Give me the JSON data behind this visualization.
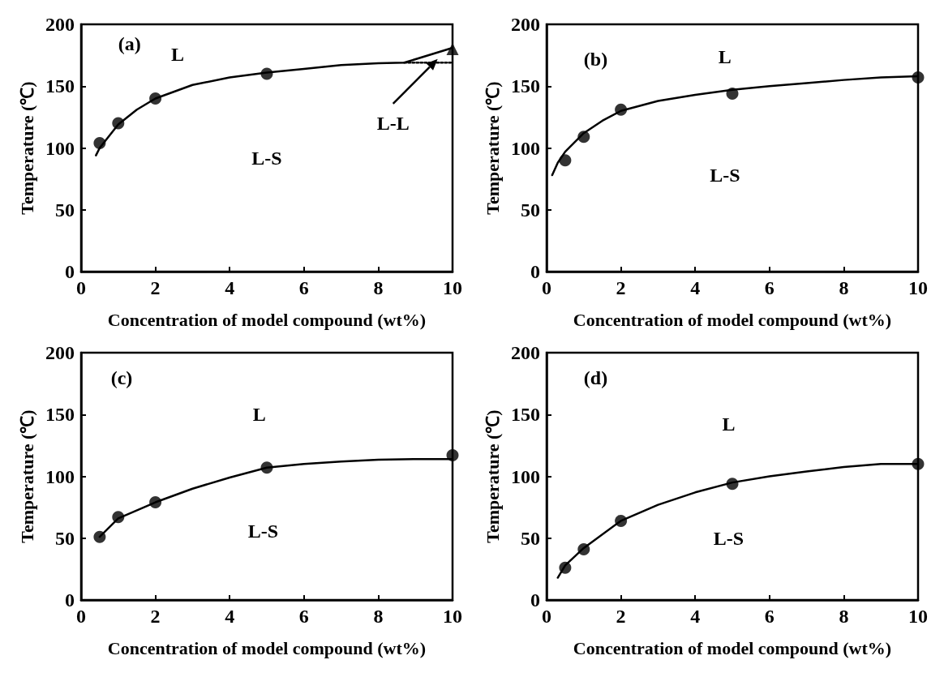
{
  "chart_data": [
    {
      "type": "scatter",
      "xlabel": "Concentration of model compound (wt%)",
      "ylabel": "Temperature (℃)",
      "xlim": [
        0,
        10
      ],
      "xticks": [
        0,
        2,
        4,
        6,
        8,
        10
      ],
      "ylim": [
        0,
        200
      ],
      "yticks": [
        0,
        50,
        100,
        150,
        200
      ],
      "annotations": [
        "(a)",
        "L",
        "L-S",
        "L-L"
      ],
      "series": [
        {
          "marker": "circle",
          "color": "#000000",
          "x": [
            0.5,
            1,
            2,
            5
          ],
          "values": [
            104,
            120,
            140,
            160
          ]
        },
        {
          "marker": "triangle",
          "color": "#000000",
          "x": [
            10
          ],
          "values": [
            180
          ]
        },
        {
          "type": "line",
          "marker": "none",
          "line_style": "solid",
          "color": "#000000",
          "x": [
            0.4,
            0.5,
            1,
            1.5,
            2,
            3,
            4,
            5,
            6,
            7,
            8,
            8.7,
            10
          ],
          "values": [
            94,
            100,
            119,
            131,
            140,
            151,
            157,
            161,
            164,
            167,
            168.5,
            169,
            181
          ]
        },
        {
          "type": "line",
          "marker": "none",
          "line_style": "dotted",
          "color": "#000000",
          "x": [
            8.7,
            10
          ],
          "values": [
            169,
            169
          ]
        }
      ]
    },
    {
      "type": "scatter",
      "xlabel": "Concentration of model compound (wt%)",
      "ylabel": "Temperature (℃)",
      "xlim": [
        0,
        10
      ],
      "xticks": [
        0,
        2,
        4,
        6,
        8,
        10
      ],
      "ylim": [
        0,
        200
      ],
      "yticks": [
        0,
        50,
        100,
        150,
        200
      ],
      "annotations": [
        "(b)",
        "L",
        "L-S"
      ],
      "series": [
        {
          "marker": "circle",
          "color": "#000000",
          "x": [
            0.5,
            1,
            2,
            5,
            10
          ],
          "values": [
            90,
            109,
            131,
            144,
            157
          ]
        },
        {
          "type": "line",
          "marker": "none",
          "line_style": "solid",
          "color": "#000000",
          "x": [
            0.15,
            0.3,
            0.5,
            1,
            1.5,
            2,
            3,
            4,
            5,
            6,
            7,
            8,
            9,
            10
          ],
          "values": [
            78,
            88,
            97,
            112,
            122,
            130,
            138,
            143,
            147,
            150,
            152.5,
            155,
            157,
            158
          ]
        }
      ]
    },
    {
      "type": "scatter",
      "xlabel": "Concentration of model compound (wt%)",
      "ylabel": "Temperature (℃)",
      "xlim": [
        0,
        10
      ],
      "xticks": [
        0,
        2,
        4,
        6,
        8,
        10
      ],
      "ylim": [
        0,
        200
      ],
      "yticks": [
        0,
        50,
        100,
        150,
        200
      ],
      "annotations": [
        "(c)",
        "L",
        "L-S"
      ],
      "series": [
        {
          "marker": "circle",
          "color": "#000000",
          "x": [
            0.5,
            1,
            2,
            5,
            10
          ],
          "values": [
            51,
            67,
            79,
            107,
            117
          ]
        },
        {
          "type": "line",
          "marker": "none",
          "line_style": "solid",
          "color": "#000000",
          "x": [
            0.5,
            1,
            2,
            3,
            4,
            5,
            6,
            7,
            8,
            9,
            10
          ],
          "values": [
            51,
            66,
            79,
            90,
            99,
            107,
            110,
            112,
            113.5,
            114,
            114
          ]
        }
      ]
    },
    {
      "type": "scatter",
      "xlabel": "Concentration of model compound (wt%)",
      "ylabel": "Temperature (℃)",
      "xlim": [
        0,
        10
      ],
      "xticks": [
        0,
        2,
        4,
        6,
        8,
        10
      ],
      "ylim": [
        0,
        200
      ],
      "yticks": [
        0,
        50,
        100,
        150,
        200
      ],
      "annotations": [
        "(d)",
        "L",
        "L-S"
      ],
      "series": [
        {
          "marker": "circle",
          "color": "#000000",
          "x": [
            0.5,
            1,
            2,
            5,
            10
          ],
          "values": [
            26,
            41,
            64,
            94,
            110
          ]
        },
        {
          "type": "line",
          "marker": "none",
          "line_style": "solid",
          "color": "#000000",
          "x": [
            0.3,
            0.5,
            1,
            2,
            3,
            4,
            5,
            6,
            7,
            8,
            9,
            10
          ],
          "values": [
            18,
            28,
            42,
            64,
            77,
            87,
            95,
            100,
            104,
            107.5,
            110,
            110
          ]
        }
      ]
    }
  ]
}
